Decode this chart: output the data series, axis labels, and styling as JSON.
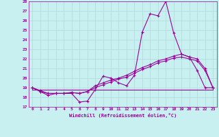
{
  "xlabel": "Windchill (Refroidissement éolien,°C)",
  "background_color": "#c8f0f0",
  "grid_color": "#b0d8d8",
  "line_color": "#990099",
  "xlim": [
    -0.5,
    23.5
  ],
  "ylim": [
    17,
    28
  ],
  "yticks": [
    17,
    18,
    19,
    20,
    21,
    22,
    23,
    24,
    25,
    26,
    27,
    28
  ],
  "xticks": [
    0,
    1,
    2,
    3,
    4,
    5,
    6,
    7,
    8,
    9,
    10,
    11,
    12,
    13,
    14,
    15,
    16,
    17,
    18,
    19,
    20,
    21,
    22,
    23
  ],
  "series1_x": [
    0,
    1,
    2,
    3,
    4,
    5,
    6,
    7,
    8,
    9,
    10,
    11,
    12,
    13,
    14,
    15,
    16,
    17,
    18,
    19,
    20,
    21,
    22,
    23
  ],
  "series1_y": [
    19.0,
    18.6,
    18.2,
    18.4,
    18.4,
    18.4,
    17.5,
    17.6,
    18.8,
    20.2,
    20.0,
    19.5,
    19.2,
    20.3,
    24.8,
    26.7,
    26.5,
    28.0,
    24.7,
    22.5,
    22.2,
    20.8,
    19.0,
    19.0
  ],
  "series2_x": [
    0,
    1,
    2,
    3,
    4,
    5,
    6,
    7,
    8,
    9,
    10,
    11,
    12,
    13,
    14,
    15,
    16,
    17,
    18,
    19,
    20,
    21,
    22,
    23
  ],
  "series2_y": [
    19.0,
    18.6,
    18.4,
    18.4,
    18.4,
    18.5,
    18.4,
    18.6,
    19.2,
    19.5,
    19.8,
    20.0,
    20.3,
    20.7,
    21.1,
    21.4,
    21.8,
    22.0,
    22.3,
    22.5,
    22.2,
    22.0,
    21.0,
    19.0
  ],
  "series3_x": [
    0,
    1,
    2,
    3,
    4,
    5,
    6,
    7,
    8,
    9,
    10,
    11,
    12,
    13,
    14,
    15,
    16,
    17,
    18,
    19,
    20,
    21,
    22,
    23
  ],
  "series3_y": [
    19.0,
    18.7,
    18.4,
    18.4,
    18.4,
    18.5,
    18.4,
    18.6,
    19.0,
    19.3,
    19.6,
    19.9,
    20.1,
    20.5,
    20.9,
    21.2,
    21.6,
    21.8,
    22.1,
    22.2,
    22.0,
    21.8,
    20.8,
    19.0
  ],
  "series4_x": [
    0,
    9,
    22,
    23
  ],
  "series4_y": [
    18.8,
    18.8,
    18.8,
    18.8
  ]
}
